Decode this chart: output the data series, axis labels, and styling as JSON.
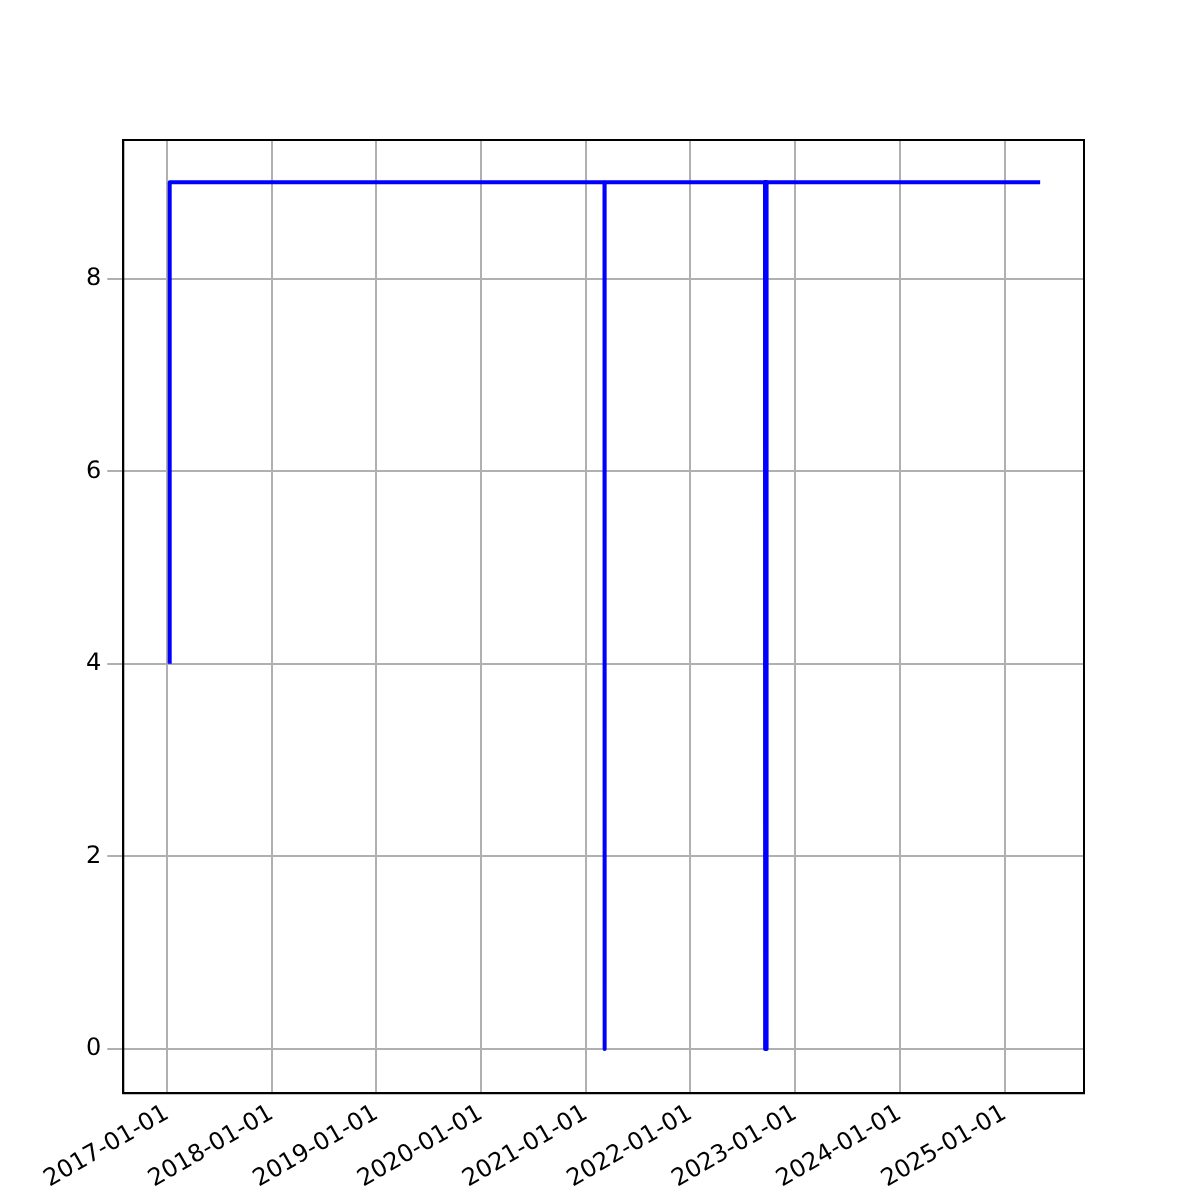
{
  "chart_data": {
    "type": "line",
    "x": [
      "2017-01-10",
      "2017-01-10",
      "2021-03-07",
      "2021-03-07",
      "2021-03-08",
      "2022-09-18",
      "2022-09-18",
      "2022-09-19",
      "2022-09-23",
      "2022-09-23",
      "2022-09-24",
      "2025-05-05"
    ],
    "series": [
      {
        "color": "#0000ff",
        "values": [
          4,
          9,
          9,
          0,
          9,
          9,
          0,
          9,
          9,
          0,
          9,
          9
        ]
      }
    ],
    "xlim": [
      "2016-08-01",
      "2025-10-05"
    ],
    "xticks": [
      "2017-01-01",
      "2018-01-01",
      "2019-01-01",
      "2020-01-01",
      "2021-01-01",
      "2022-01-01",
      "2023-01-01",
      "2024-01-01",
      "2025-01-01"
    ],
    "ylim": [
      -0.46,
      9.44
    ],
    "yticks": [
      0,
      2,
      4,
      6,
      8
    ],
    "grid": true,
    "legend": false,
    "marker": "none",
    "line_style": "solid"
  }
}
